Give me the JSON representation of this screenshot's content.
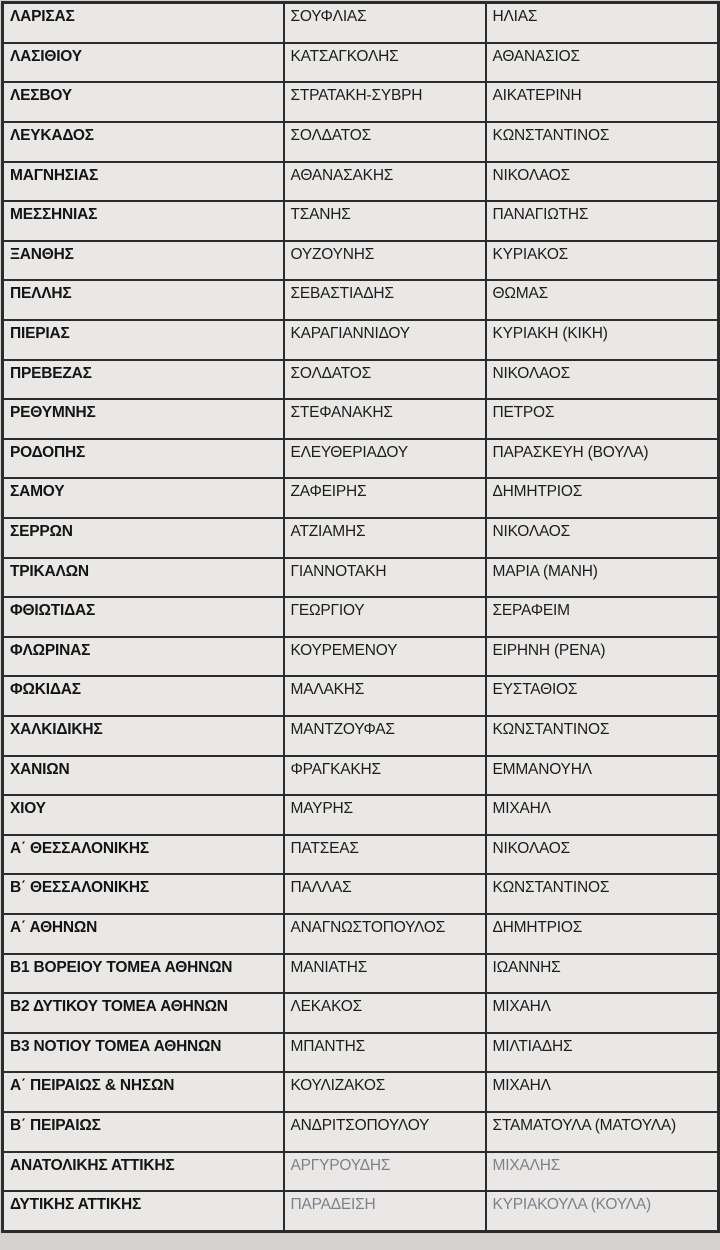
{
  "colors": {
    "page_background": "#d5d3d0",
    "cell_background": "#e9e8e6",
    "border": "#2c2c2c",
    "text": "#1d1d1d",
    "muted_text": "#80808a"
  },
  "table": {
    "rows": [
      {
        "region": "ΛΑΡΙΣΑΣ",
        "surname": "ΣΟΥΦΛΙΑΣ",
        "first_name": "ΗΛΙΑΣ",
        "muted": false
      },
      {
        "region": "ΛΑΣΙΘΙΟΥ",
        "surname": "ΚΑΤΣΑΓΚΟΛΗΣ",
        "first_name": "ΑΘΑΝΑΣΙΟΣ",
        "muted": false
      },
      {
        "region": "ΛΕΣΒΟΥ",
        "surname": "ΣΤΡΑΤΑΚΗ-ΣΥΒΡΗ",
        "first_name": "ΑΙΚΑΤΕΡΙΝΗ",
        "muted": false
      },
      {
        "region": "ΛΕΥΚΑΔΟΣ",
        "surname": "ΣΟΛΔΑΤΟΣ",
        "first_name": "ΚΩΝΣΤΑΝΤΙΝΟΣ",
        "muted": false
      },
      {
        "region": "ΜΑΓΝΗΣΙΑΣ",
        "surname": "ΑΘΑΝΑΣΑΚΗΣ",
        "first_name": "ΝΙΚΟΛΑΟΣ",
        "muted": false
      },
      {
        "region": "ΜΕΣΣΗΝΙΑΣ",
        "surname": "ΤΣΑΝΗΣ",
        "first_name": "ΠΑΝΑΓΙΩΤΗΣ",
        "muted": false
      },
      {
        "region": "ΞΑΝΘΗΣ",
        "surname": "ΟΥΖΟΥΝΗΣ",
        "first_name": "ΚΥΡΙΑΚΟΣ",
        "muted": false
      },
      {
        "region": "ΠΕΛΛΗΣ",
        "surname": "ΣΕΒΑΣΤΙΑΔΗΣ",
        "first_name": "ΘΩΜΑΣ",
        "muted": false
      },
      {
        "region": "ΠΙΕΡΙΑΣ",
        "surname": "ΚΑΡΑΓΙΑΝΝΙΔΟΥ",
        "first_name": "ΚΥΡΙΑΚΗ (ΚΙΚΗ)",
        "muted": false
      },
      {
        "region": "ΠΡΕΒΕΖΑΣ",
        "surname": "ΣΟΛΔΑΤΟΣ",
        "first_name": "ΝΙΚΟΛΑΟΣ",
        "muted": false
      },
      {
        "region": "ΡΕΘΥΜΝΗΣ",
        "surname": "ΣΤΕΦΑΝΑΚΗΣ",
        "first_name": "ΠΕΤΡΟΣ",
        "muted": false
      },
      {
        "region": "ΡΟΔΟΠΗΣ",
        "surname": "ΕΛΕΥΘΕΡΙΑΔΟΥ",
        "first_name": "ΠΑΡΑΣΚΕΥΗ (ΒΟΥΛΑ)",
        "muted": false
      },
      {
        "region": "ΣΑΜΟΥ",
        "surname": "ΖΑΦΕΙΡΗΣ",
        "first_name": "ΔΗΜΗΤΡΙΟΣ",
        "muted": false
      },
      {
        "region": "ΣΕΡΡΩΝ",
        "surname": "ΑΤΖΙΑΜΗΣ",
        "first_name": "ΝΙΚΟΛΑΟΣ",
        "muted": false
      },
      {
        "region": "ΤΡΙΚΑΛΩΝ",
        "surname": "ΓΙΑΝΝΟΤΑΚΗ",
        "first_name": "ΜΑΡΙΑ (ΜΑΝΗ)",
        "muted": false
      },
      {
        "region": "ΦΘΙΩΤΙΔΑΣ",
        "surname": "ΓΕΩΡΓΙΟΥ",
        "first_name": "ΣΕΡΑΦΕΙΜ",
        "muted": false
      },
      {
        "region": "ΦΛΩΡΙΝΑΣ",
        "surname": "ΚΟΥΡΕΜΕΝΟΥ",
        "first_name": "ΕΙΡΗΝΗ (ΡΕΝΑ)",
        "muted": false
      },
      {
        "region": "ΦΩΚΙΔΑΣ",
        "surname": "ΜΑΛΑΚΗΣ",
        "first_name": "ΕΥΣΤΑΘΙΟΣ",
        "muted": false
      },
      {
        "region": "ΧΑΛΚΙΔΙΚΗΣ",
        "surname": "ΜΑΝΤΖΟΥΦΑΣ",
        "first_name": "ΚΩΝΣΤΑΝΤΙΝΟΣ",
        "muted": false
      },
      {
        "region": "ΧΑΝΙΩΝ",
        "surname": "ΦΡΑΓΚΑΚΗΣ",
        "first_name": "ΕΜΜΑΝΟΥΗΛ",
        "muted": false
      },
      {
        "region": "ΧΙΟΥ",
        "surname": "ΜΑΥΡΗΣ",
        "first_name": "ΜΙΧΑΗΛ",
        "muted": false
      },
      {
        "region": "Α΄ ΘΕΣΣΑΛΟΝΙΚΗΣ",
        "surname": "ΠΑΤΣΕΑΣ",
        "first_name": "ΝΙΚΟΛΑΟΣ",
        "muted": false
      },
      {
        "region": "Β΄ ΘΕΣΣΑΛΟΝΙΚΗΣ",
        "surname": "ΠΑΛΛΑΣ",
        "first_name": "ΚΩΝΣΤΑΝΤΙΝΟΣ",
        "muted": false
      },
      {
        "region": "Α΄ ΑΘΗΝΩΝ",
        "surname": "ΑΝΑΓΝΩΣΤΟΠΟΥΛΟΣ",
        "first_name": "ΔΗΜΗΤΡΙΟΣ",
        "muted": false
      },
      {
        "region": "Β1 ΒΟΡΕΙΟΥ ΤΟΜΕΑ ΑΘΗΝΩΝ",
        "surname": "ΜΑΝΙΑΤΗΣ",
        "first_name": "ΙΩΑΝΝΗΣ",
        "muted": false
      },
      {
        "region": "Β2 ΔΥΤΙΚΟΥ ΤΟΜΕΑ ΑΘΗΝΩΝ",
        "surname": "ΛΕΚΑΚΟΣ",
        "first_name": "ΜΙΧΑΗΛ",
        "muted": false
      },
      {
        "region": "Β3 ΝΟΤΙΟΥ ΤΟΜΕΑ ΑΘΗΝΩΝ",
        "surname": "ΜΠΑΝΤΗΣ",
        "first_name": "ΜΙΛΤΙΑΔΗΣ",
        "muted": false
      },
      {
        "region": "Α΄ ΠΕΙΡΑΙΩΣ & ΝΗΣΩΝ",
        "surname": "ΚΟΥΛΙΖΑΚΟΣ",
        "first_name": "ΜΙΧΑΗΛ",
        "muted": false
      },
      {
        "region": "Β΄ ΠΕΙΡΑΙΩΣ",
        "surname": "ΑΝΔΡΙΤΣΟΠΟΥΛΟΥ",
        "first_name": "ΣΤΑΜΑΤΟΥΛΑ (ΜΑΤΟΥΛΑ)",
        "muted": false
      },
      {
        "region": "ΑΝΑΤΟΛΙΚΗΣ ΑΤΤΙΚΗΣ",
        "surname": "ΑΡΓΥΡΟΥΔΗΣ",
        "first_name": "ΜΙΧΑΛΗΣ",
        "muted": true
      },
      {
        "region": "ΔΥΤΙΚΗΣ ΑΤΤΙΚΗΣ",
        "surname": "ΠΑΡΑΔΕΙΣΗ",
        "first_name": "ΚΥΡΙΑΚΟΥΛΑ (ΚΟΥΛΑ)",
        "muted": true
      }
    ]
  }
}
